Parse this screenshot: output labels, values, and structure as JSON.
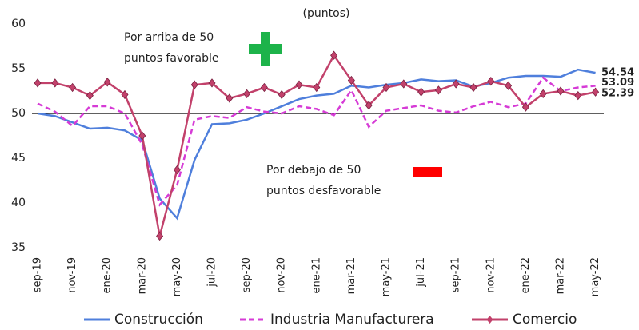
{
  "chart_data": {
    "type": "line",
    "subtitle": "(puntos)",
    "categories": [
      "sep-19",
      null,
      "nov-19",
      null,
      "ene-20",
      null,
      "mar-20",
      null,
      "may-20",
      null,
      "jul-20",
      null,
      "sep-20",
      null,
      "nov-20",
      null,
      "ene-21",
      null,
      "mar-21",
      null,
      "may-21",
      null,
      "jul-21",
      null,
      "sep-21",
      null,
      "nov-21",
      null,
      "ene-22",
      null,
      "mar-22",
      null,
      "may-22"
    ],
    "series": [
      {
        "name": "Construcción",
        "color": "#4f7fdc",
        "values": [
          50.0,
          49.7,
          49.0,
          48.3,
          48.4,
          48.1,
          47.0,
          40.5,
          38.3,
          44.8,
          48.8,
          48.9,
          49.3,
          50.0,
          50.8,
          51.6,
          52.0,
          52.2,
          53.1,
          52.9,
          53.2,
          53.4,
          53.8,
          53.6,
          53.7,
          53.0,
          53.4,
          54.0,
          54.2,
          54.2,
          54.1,
          54.9,
          54.54
        ]
      },
      {
        "name": "Industria Manufacturera",
        "color": "#d63bd6",
        "dashed": true,
        "values": [
          51.1,
          50.2,
          48.6,
          50.8,
          50.8,
          50.0,
          46.5,
          39.8,
          42.0,
          49.3,
          49.7,
          49.5,
          50.7,
          50.2,
          50.0,
          50.8,
          50.5,
          49.8,
          52.6,
          48.5,
          50.3,
          50.6,
          50.9,
          50.3,
          50.1,
          50.8,
          51.3,
          50.7,
          51.1,
          54.0,
          52.5,
          52.9,
          53.09
        ]
      },
      {
        "name": "Comercio",
        "color": "#c2416b",
        "markers": true,
        "values": [
          53.4,
          53.4,
          52.9,
          52.0,
          53.5,
          52.1,
          47.5,
          36.3,
          43.7,
          53.2,
          53.4,
          51.7,
          52.2,
          52.9,
          52.1,
          53.2,
          52.9,
          56.5,
          53.7,
          50.9,
          52.9,
          53.3,
          52.4,
          52.6,
          53.3,
          52.9,
          53.6,
          53.1,
          50.7,
          52.2,
          52.5,
          52.0,
          52.39
        ]
      }
    ],
    "label_colors": [
      "#4f7fdc",
      "#d63bd6",
      "#7a1a1a"
    ],
    "reference_line": 50,
    "annotations": [
      [
        "Por arriba de 50",
        "puntos favorable"
      ],
      [
        "Por debajo de 50",
        "puntos desfavorable"
      ]
    ],
    "ylim": [
      35,
      60
    ],
    "yticks": [
      35,
      40,
      45,
      50,
      55,
      60
    ],
    "legend": "bottom"
  }
}
